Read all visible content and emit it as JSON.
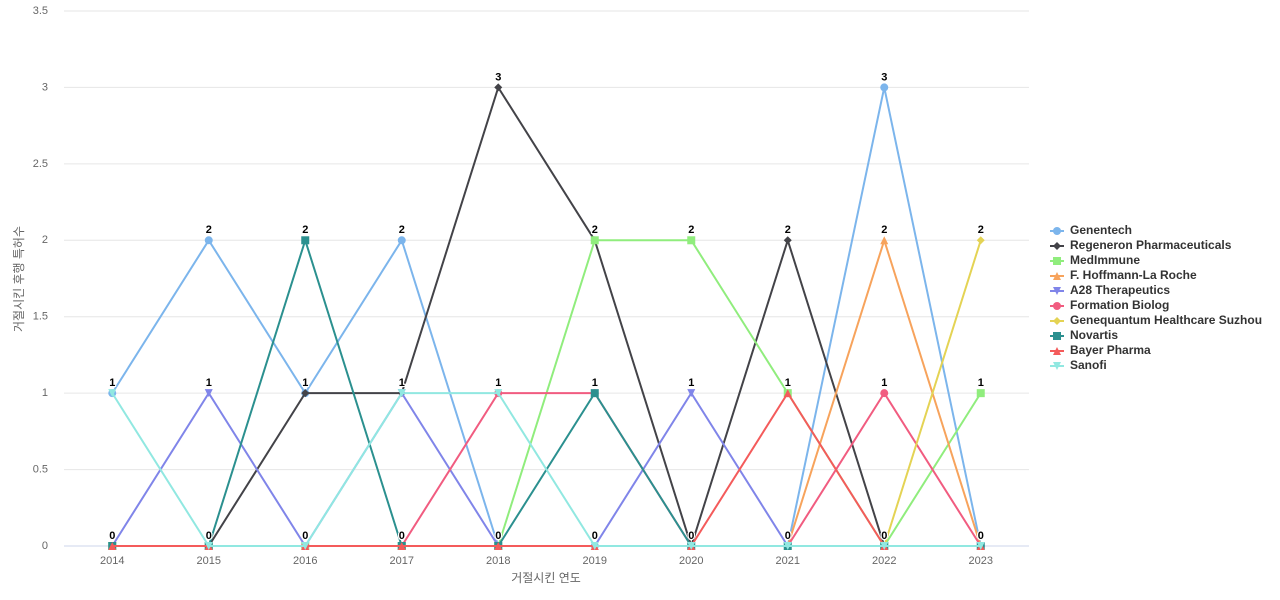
{
  "chart_data": {
    "type": "line",
    "y_label": "거절시킨 후행 특허수",
    "x_label": "거절시킨 연도",
    "categories": [
      "2014",
      "2015",
      "2016",
      "2017",
      "2018",
      "2019",
      "2020",
      "2021",
      "2022",
      "2023"
    ],
    "ylim": [
      0,
      3.5
    ],
    "yticks": [
      0,
      0.5,
      1,
      1.5,
      2,
      2.5,
      3,
      3.5
    ],
    "grid": true,
    "legend": "right",
    "series": [
      {
        "name": "Genentech",
        "color": "#7cb5ec",
        "marker": "circle",
        "values": [
          1,
          2,
          1,
          2,
          0,
          0,
          0,
          0,
          3,
          0
        ]
      },
      {
        "name": "Regeneron Pharmaceuticals",
        "color": "#434348",
        "marker": "diamond",
        "values": [
          0,
          0,
          1,
          1,
          3,
          2,
          0,
          2,
          0,
          0
        ]
      },
      {
        "name": "MedImmune",
        "color": "#90ed7d",
        "marker": "square",
        "values": [
          0,
          0,
          0,
          0,
          0,
          2,
          2,
          1,
          0,
          1
        ]
      },
      {
        "name": "F. Hoffmann-La Roche",
        "color": "#f7a35c",
        "marker": "triangle",
        "values": [
          0,
          0,
          0,
          0,
          0,
          0,
          0,
          0,
          2,
          0
        ]
      },
      {
        "name": "A28 Therapeutics",
        "color": "#8085e9",
        "marker": "triangle-down",
        "values": [
          0,
          1,
          0,
          1,
          0,
          0,
          1,
          0,
          0,
          0
        ]
      },
      {
        "name": "Formation Biolog",
        "color": "#f15c80",
        "marker": "circle",
        "values": [
          0,
          0,
          0,
          0,
          1,
          1,
          0,
          0,
          1,
          0
        ]
      },
      {
        "name": "Genequantum Healthcare Suzhou",
        "color": "#e4d354",
        "marker": "diamond",
        "values": [
          0,
          0,
          0,
          0,
          0,
          0,
          0,
          0,
          0,
          2
        ]
      },
      {
        "name": "Novartis",
        "color": "#2b908f",
        "marker": "square",
        "values": [
          0,
          0,
          2,
          0,
          0,
          1,
          0,
          0,
          0,
          0
        ]
      },
      {
        "name": "Bayer Pharma",
        "color": "#f45b5b",
        "marker": "triangle",
        "values": [
          0,
          0,
          0,
          0,
          0,
          0,
          0,
          1,
          0,
          0
        ]
      },
      {
        "name": "Sanofi",
        "color": "#91e8e1",
        "marker": "triangle-down",
        "values": [
          1,
          0,
          0,
          1,
          1,
          0,
          0,
          0,
          0,
          0
        ]
      }
    ]
  }
}
